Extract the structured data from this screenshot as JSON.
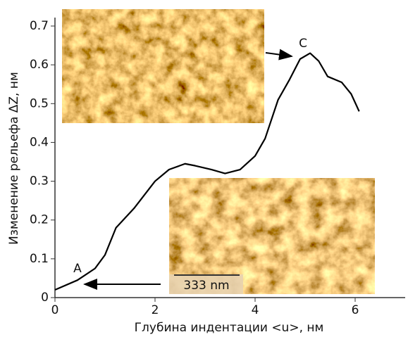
{
  "chart_data": {
    "type": "line",
    "x_label": "Глубина индентации <u>, нм",
    "y_label": "Изменение рельефа ΔZ, нм",
    "x": [
      0,
      0.45,
      0.8,
      1.0,
      1.22,
      1.58,
      2.0,
      2.28,
      2.6,
      2.8,
      3.13,
      3.4,
      3.7,
      4.0,
      4.2,
      4.46,
      4.68,
      4.9,
      5.1,
      5.27,
      5.45,
      5.73,
      5.92,
      6.08
    ],
    "values": [
      0.02,
      0.045,
      0.075,
      0.11,
      0.18,
      0.23,
      0.3,
      0.33,
      0.345,
      0.34,
      0.33,
      0.32,
      0.33,
      0.365,
      0.41,
      0.51,
      0.56,
      0.615,
      0.63,
      0.61,
      0.57,
      0.555,
      0.525,
      0.48
    ],
    "color": "#000000",
    "xlim": [
      0,
      7
    ],
    "xticks": [
      0,
      2,
      4,
      6
    ],
    "ylim": [
      0,
      0.7
    ],
    "yticks": [
      0,
      0.1,
      0.2,
      0.3,
      0.4,
      0.5,
      0.6,
      0.7
    ],
    "annotations": [
      "A",
      "C"
    ],
    "scale_bar": "333 nm"
  }
}
